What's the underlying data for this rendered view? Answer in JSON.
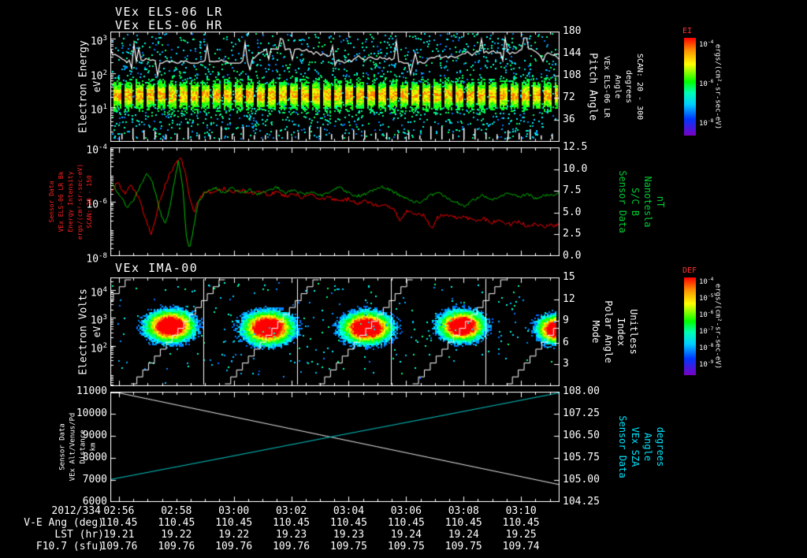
{
  "header": {
    "title_line1": "VEx ELS-06 LR",
    "title_line2": "VEx ELS-06 HR",
    "panel3_title": "VEx IMA-00"
  },
  "time_axis": {
    "date_label": "2012/334",
    "total_minutes": 15.64,
    "tick_minutes": [
      0.3,
      2.3,
      4.3,
      6.3,
      8.3,
      10.3,
      12.3,
      14.3
    ],
    "tick_labels": [
      "02:56",
      "02:58",
      "03:00",
      "03:02",
      "03:04",
      "03:06",
      "03:08",
      "03:10"
    ]
  },
  "footer_rows": [
    {
      "label": "V-E Ang (deg)",
      "values": [
        "110.45",
        "110.45",
        "110.45",
        "110.45",
        "110.45",
        "110.45",
        "110.45",
        "110.45"
      ]
    },
    {
      "label": "LST (hr)",
      "values": [
        "19.21",
        "19.22",
        "19.22",
        "19.23",
        "19.23",
        "19.24",
        "19.24",
        "19.25"
      ]
    },
    {
      "label": "F10.7 (sfu)",
      "values": [
        "109.76",
        "109.76",
        "109.76",
        "109.76",
        "109.75",
        "109.75",
        "109.75",
        "109.74"
      ]
    }
  ],
  "colorbars": [
    {
      "title": "EI",
      "colormap": "rainbow",
      "unit": "ergs/(cm²-sr-sec-eV)",
      "tick_labels": [
        "10^-4",
        "10^-6",
        "10^-8"
      ]
    },
    {
      "title": "DEF",
      "colormap": "rainbow",
      "unit": "ergs/(cm²-sr-sec-eV)",
      "tick_labels": [
        "10^-4",
        "10^-5",
        "10^-6",
        "10^-7",
        "10^-8",
        "10^-9"
      ]
    }
  ],
  "chart_data": [
    {
      "id": "els_energy_spectrogram",
      "type": "heatmap",
      "instrument": "VEx ELS-06 LR/HR",
      "left_axis": {
        "scale": "log",
        "range": [
          3.2,
          0
        ],
        "color": "#ffffff",
        "title_lines": [
          "Electron Energy",
          "eV"
        ],
        "ticks": [
          {
            "label": "10^3",
            "value": 3
          },
          {
            "label": "10^2",
            "value": 2
          },
          {
            "label": "10^1",
            "value": 1
          }
        ]
      },
      "right_axis": {
        "scale": "linear",
        "range": [
          180,
          0
        ],
        "color": "#ffffff",
        "title_lines": [
          "Pitch Angle",
          "VEx ELS-06 LR",
          "Angle",
          "degrees",
          "SCAN: 20 - 300"
        ],
        "ticks": [
          {
            "label": "180",
            "value": 180
          },
          {
            "label": "144",
            "value": 144
          },
          {
            "label": "108",
            "value": 108
          },
          {
            "label": "72",
            "value": 72
          },
          {
            "label": "36",
            "value": 36
          }
        ]
      },
      "band": {
        "center_log10_ev": 1.37,
        "sigma_log10": 0.34,
        "description": "dense green/cyan electron flux band ~7-60 eV with periodic sampling gaps; scattered cyan/blue low-flux points at all energies"
      },
      "overlay_line": {
        "color": "#ffffff",
        "mean_value_deg": 140,
        "description": "jagged white pitch-angle trace near top with upward spikes"
      }
    },
    {
      "id": "els_intensity_and_bfield",
      "type": "line",
      "left_axis": {
        "scale": "log",
        "range": [
          -4,
          -8
        ],
        "color": "#ff2222",
        "title_lines": [
          "Sensor Data",
          "VEx ELS-06 LR Bk",
          "Energy Intensity",
          "ergs/(cm²-sr-sec-eV)",
          "SCAN: 20 - 150"
        ],
        "ticks": [
          {
            "label": "10^-4",
            "value": -4
          },
          {
            "label": "10^-6",
            "value": -6
          },
          {
            "label": "10^-8",
            "value": -8
          }
        ]
      },
      "right_axis": {
        "scale": "linear",
        "range": [
          12.5,
          0
        ],
        "color": "#00cc33",
        "title_lines": [
          "Sensor Data",
          "S/C B",
          "Nanotesla",
          "nT"
        ],
        "ticks": [
          {
            "label": "12.5",
            "value": 12.5
          },
          {
            "label": "10.0",
            "value": 10
          },
          {
            "label": "7.5",
            "value": 7.5
          },
          {
            "label": "5.0",
            "value": 5
          },
          {
            "label": "2.5",
            "value": 2.5
          },
          {
            "label": "0.0",
            "value": 0
          }
        ]
      },
      "series": [
        {
          "name": "ELS-06 LR Bk Energy Intensity",
          "color": "#ff0000",
          "axis": "left",
          "values_are": "log10 of ergs/(cm²-sr-sec-eV)",
          "points": [
            [
              0,
              -5.6
            ],
            [
              0.015,
              -5.3
            ],
            [
              0.03,
              -5.7
            ],
            [
              0.045,
              -5.4
            ],
            [
              0.06,
              -5.8
            ],
            [
              0.075,
              -6.5
            ],
            [
              0.09,
              -7.2
            ],
            [
              0.1,
              -6.6
            ],
            [
              0.11,
              -5.9
            ],
            [
              0.125,
              -5.2
            ],
            [
              0.14,
              -4.7
            ],
            [
              0.155,
              -4.35
            ],
            [
              0.165,
              -4.9
            ],
            [
              0.175,
              -5.8
            ],
            [
              0.185,
              -6.4
            ],
            [
              0.195,
              -6.0
            ],
            [
              0.21,
              -5.6
            ],
            [
              0.23,
              -5.7
            ],
            [
              0.25,
              -5.5
            ],
            [
              0.27,
              -5.65
            ],
            [
              0.29,
              -5.55
            ],
            [
              0.31,
              -5.7
            ],
            [
              0.33,
              -5.6
            ],
            [
              0.35,
              -5.75
            ],
            [
              0.37,
              -5.65
            ],
            [
              0.39,
              -5.8
            ],
            [
              0.41,
              -5.7
            ],
            [
              0.43,
              -5.85
            ],
            [
              0.45,
              -5.75
            ],
            [
              0.47,
              -5.9
            ],
            [
              0.49,
              -5.85
            ],
            [
              0.51,
              -6.0
            ],
            [
              0.53,
              -5.9
            ],
            [
              0.55,
              -6.05
            ],
            [
              0.57,
              -6.0
            ],
            [
              0.59,
              -6.15
            ],
            [
              0.61,
              -6.1
            ],
            [
              0.63,
              -6.25
            ],
            [
              0.645,
              -6.7
            ],
            [
              0.66,
              -6.35
            ],
            [
              0.68,
              -6.45
            ],
            [
              0.7,
              -6.5
            ],
            [
              0.715,
              -7.0
            ],
            [
              0.73,
              -6.55
            ],
            [
              0.75,
              -6.5
            ],
            [
              0.77,
              -6.6
            ],
            [
              0.79,
              -6.55
            ],
            [
              0.81,
              -6.7
            ],
            [
              0.83,
              -6.6
            ],
            [
              0.85,
              -6.75
            ],
            [
              0.87,
              -6.7
            ],
            [
              0.89,
              -6.85
            ],
            [
              0.91,
              -6.75
            ],
            [
              0.93,
              -6.9
            ],
            [
              0.95,
              -6.8
            ],
            [
              0.97,
              -6.9
            ],
            [
              1,
              -6.85
            ]
          ]
        },
        {
          "name": "S/C B magnitude",
          "color": "#00c000",
          "axis": "right",
          "unit": "nT",
          "points": [
            [
              0,
              8.4
            ],
            [
              0.02,
              7.0
            ],
            [
              0.035,
              5.6
            ],
            [
              0.05,
              6.5
            ],
            [
              0.065,
              8.0
            ],
            [
              0.08,
              9.6
            ],
            [
              0.09,
              8.8
            ],
            [
              0.1,
              7.0
            ],
            [
              0.11,
              5.0
            ],
            [
              0.12,
              3.8
            ],
            [
              0.13,
              5.2
            ],
            [
              0.14,
              8.2
            ],
            [
              0.15,
              10.9
            ],
            [
              0.16,
              8.0
            ],
            [
              0.168,
              2.2
            ],
            [
              0.175,
              0.7
            ],
            [
              0.185,
              3.5
            ],
            [
              0.195,
              6.2
            ],
            [
              0.21,
              7.4
            ],
            [
              0.23,
              7.9
            ],
            [
              0.25,
              7.3
            ],
            [
              0.27,
              7.8
            ],
            [
              0.29,
              7.2
            ],
            [
              0.31,
              7.6
            ],
            [
              0.33,
              7.1
            ],
            [
              0.35,
              7.5
            ],
            [
              0.37,
              7.9
            ],
            [
              0.39,
              7.3
            ],
            [
              0.41,
              7.6
            ],
            [
              0.43,
              7.1
            ],
            [
              0.45,
              7.4
            ],
            [
              0.47,
              6.9
            ],
            [
              0.49,
              7.5
            ],
            [
              0.51,
              7.9
            ],
            [
              0.53,
              7.3
            ],
            [
              0.55,
              6.9
            ],
            [
              0.57,
              7.2
            ],
            [
              0.59,
              7.7
            ],
            [
              0.61,
              8.0
            ],
            [
              0.63,
              7.4
            ],
            [
              0.65,
              6.9
            ],
            [
              0.67,
              6.4
            ],
            [
              0.69,
              6.1
            ],
            [
              0.71,
              6.9
            ],
            [
              0.73,
              7.4
            ],
            [
              0.75,
              6.7
            ],
            [
              0.77,
              6.2
            ],
            [
              0.79,
              5.7
            ],
            [
              0.81,
              6.5
            ],
            [
              0.83,
              7.0
            ],
            [
              0.85,
              6.5
            ],
            [
              0.87,
              6.9
            ],
            [
              0.89,
              7.3
            ],
            [
              0.91,
              6.8
            ],
            [
              0.93,
              7.1
            ],
            [
              0.95,
              6.6
            ],
            [
              0.97,
              7.0
            ],
            [
              1,
              7.1
            ]
          ]
        }
      ]
    },
    {
      "id": "ima_spectrogram",
      "type": "heatmap",
      "instrument": "VEx IMA-00",
      "left_axis": {
        "scale": "log",
        "range": [
          4.45,
          0.55
        ],
        "color": "#ffffff",
        "title_lines": [
          "Electron Volts",
          "eV"
        ],
        "ticks": [
          {
            "label": "10^4",
            "value": 4
          },
          {
            "label": "10^3",
            "value": 3
          },
          {
            "label": "10^2",
            "value": 2
          }
        ]
      },
      "right_axis": {
        "scale": "linear",
        "range": [
          15,
          0
        ],
        "color": "#ffffff",
        "title_lines": [
          "Mode",
          "Polar Angle",
          "Index",
          "Unitless"
        ],
        "ticks": [
          {
            "label": "15",
            "value": 15
          },
          {
            "label": "12",
            "value": 12
          },
          {
            "label": "9",
            "value": 9
          },
          {
            "label": "6",
            "value": 6
          },
          {
            "label": "3",
            "value": 3
          }
        ]
      },
      "blobs": [
        {
          "x": 0.132,
          "log10_ev": 2.7,
          "sx_frac": 0.048,
          "sy_log10": 0.5
        },
        {
          "x": 0.351,
          "log10_ev": 2.65,
          "sx_frac": 0.05,
          "sy_log10": 0.52
        },
        {
          "x": 0.57,
          "log10_ev": 2.65,
          "sx_frac": 0.05,
          "sy_log10": 0.5
        },
        {
          "x": 0.781,
          "log10_ev": 2.7,
          "sx_frac": 0.045,
          "sy_log10": 0.48
        },
        {
          "x": 0.995,
          "log10_ev": 2.6,
          "sx_frac": 0.04,
          "sy_log10": 0.45
        }
      ],
      "mode_lines": {
        "period_frac": 0.209,
        "start_frac": -0.163,
        "index_steps": 16,
        "reset_fracs": [
          0.207,
          0.416,
          0.625,
          0.835
        ],
        "description": "white polar-angle staircase sweeps (index 0-15) with vertical mode reset lines"
      }
    },
    {
      "id": "altitude_and_sza",
      "type": "line",
      "left_axis": {
        "scale": "linear",
        "range": [
          11000,
          6000
        ],
        "color": "#ffffff",
        "title_lines": [
          "Sensor Data",
          "VEx Alt/Venus/Pd",
          "Distance",
          "km"
        ],
        "ticks": [
          {
            "label": "11000",
            "value": 11000
          },
          {
            "label": "10000",
            "value": 10000
          },
          {
            "label": "9000",
            "value": 9000
          },
          {
            "label": "8000",
            "value": 8000
          },
          {
            "label": "7000",
            "value": 7000
          },
          {
            "label": "6000",
            "value": 6000
          }
        ]
      },
      "right_axis": {
        "scale": "linear",
        "range": [
          108,
          104.25
        ],
        "color": "#00e5ff",
        "title_lines": [
          "Sensor Data",
          "VEx SZA",
          "Angle",
          "degrees"
        ],
        "ticks": [
          {
            "label": "108.00",
            "value": 108
          },
          {
            "label": "107.25",
            "value": 107.25
          },
          {
            "label": "106.50",
            "value": 106.5
          },
          {
            "label": "105.75",
            "value": 105.75
          },
          {
            "label": "105.00",
            "value": 105
          },
          {
            "label": "104.25",
            "value": 104.25
          }
        ]
      },
      "series": [
        {
          "name": "VEx altitude above Venus",
          "color": "#ffffff",
          "axis": "left",
          "unit": "km",
          "points": [
            [
              0,
              11020
            ],
            [
              0.25,
              9960
            ],
            [
              0.5,
              8905
            ],
            [
              0.75,
              7850
            ],
            [
              1,
              6795
            ]
          ]
        },
        {
          "name": "VEx solar zenith angle",
          "color": "#00dddd",
          "axis": "right",
          "unit": "degrees",
          "points": [
            [
              0,
              105.02
            ],
            [
              0.25,
              105.75
            ],
            [
              0.5,
              106.49
            ],
            [
              0.75,
              107.22
            ],
            [
              1,
              107.96
            ]
          ]
        }
      ]
    }
  ]
}
